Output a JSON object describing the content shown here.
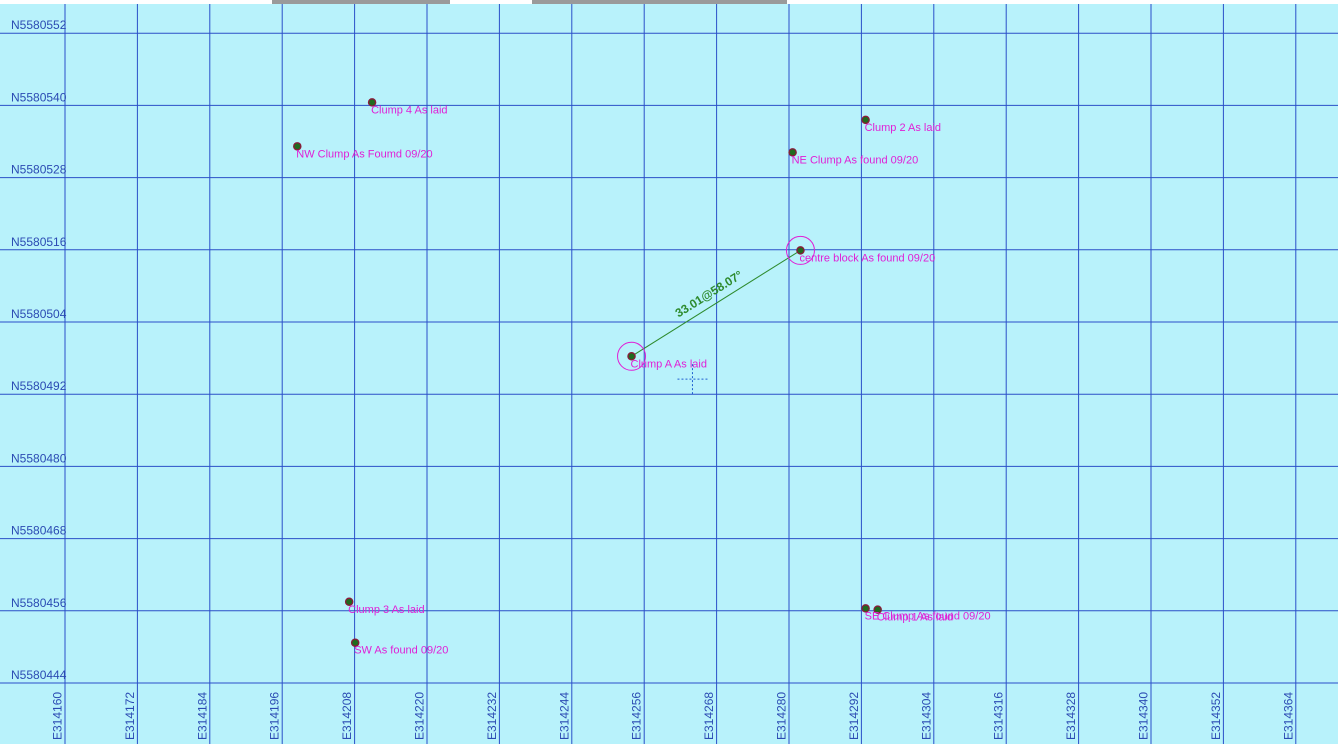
{
  "map": {
    "background": "#b8f2fb",
    "grid_color": "#2a4fc8",
    "label_color": "#2b4bb3",
    "point_label_color": "#e01fd6",
    "measure_color": "#2e8b2e",
    "easting_labels": [
      "E314160",
      "E314172",
      "E314184",
      "E314196",
      "E314208",
      "E314220",
      "E314232",
      "E314244",
      "E314256",
      "E314268",
      "E314280",
      "E314292",
      "E314304",
      "E314316",
      "E314328",
      "E314340",
      "E314352",
      "E314364"
    ],
    "northing_labels": [
      "N5580552",
      "N5580540",
      "N5580528",
      "N5580516",
      "N5580504",
      "N5580492",
      "N5580480",
      "N5580468",
      "N5580456",
      "N5580444"
    ]
  },
  "points": [
    {
      "label": "Clump 4 As laid",
      "e": 314210.9,
      "n": 5580540.5,
      "icon": "survey-point-icon"
    },
    {
      "label": "NW Clump As Foumd 09/20",
      "e": 314198.5,
      "n": 5580533.2,
      "icon": "survey-point-icon"
    },
    {
      "label": "Clump 2 As laid",
      "e": 314292.7,
      "n": 5580537.6,
      "icon": "survey-point-icon"
    },
    {
      "label": "NE Clump As found 09/20",
      "e": 314280.6,
      "n": 5580532.2,
      "icon": "survey-point-icon"
    },
    {
      "label": "centre block As found 09/20",
      "e": 314281.9,
      "n": 5580515.9,
      "icon": "survey-point-icon"
    },
    {
      "label": "Clump A As laid",
      "e": 314253.9,
      "n": 5580498.3,
      "icon": "survey-point-icon"
    },
    {
      "label": "Clump 3 As laid",
      "e": 314207.1,
      "n": 5580457.5,
      "icon": "survey-point-icon"
    },
    {
      "label": "SW As found 09/20",
      "e": 314208.1,
      "n": 5580450.7,
      "icon": "survey-point-icon"
    },
    {
      "label": "Clump 1 As laid",
      "e": 314294.7,
      "n": 5580456.2,
      "icon": "survey-point-icon"
    },
    {
      "label": "SE Clump As found 09/20",
      "e": 314292.7,
      "n": 5580456.4,
      "icon": "survey-point-icon"
    }
  ],
  "measurement": {
    "label": "33.01@58.07°",
    "from": {
      "e": 314253.9,
      "n": 5580498.3
    },
    "to": {
      "e": 314281.9,
      "n": 5580515.9
    }
  },
  "cursor": {
    "e": 314264.0,
    "n": 5580494.5,
    "icon": "crosshair-icon"
  }
}
